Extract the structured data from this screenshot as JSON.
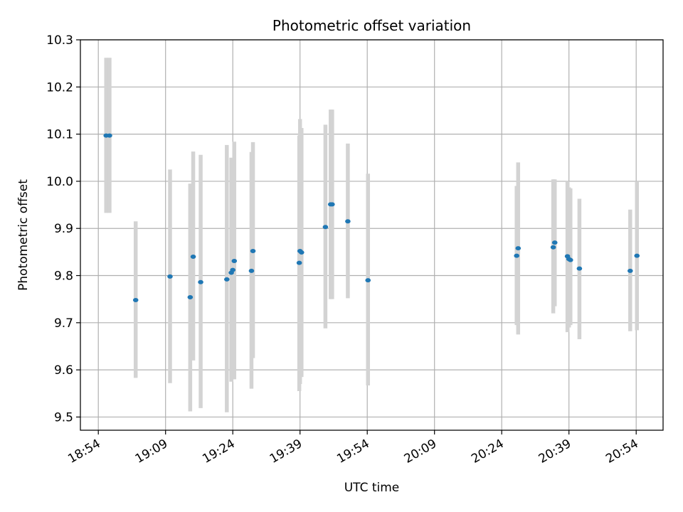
{
  "chart_data": {
    "type": "scatter",
    "title": "Photometric offset variation",
    "xlabel": "UTC time",
    "ylabel": "Photometric offset",
    "grid": true,
    "legend": "none",
    "x_unit": "UTC HH:MM",
    "x_ticks": [
      "18:54",
      "19:09",
      "19:24",
      "19:39",
      "19:54",
      "20:09",
      "20:24",
      "20:39",
      "20:54"
    ],
    "xlim": [
      "18:50",
      "21:00"
    ],
    "y_ticks": [
      "9.5",
      "9.6",
      "9.7",
      "9.8",
      "9.9",
      "10.0",
      "10.1",
      "10.2",
      "10.3"
    ],
    "ylim": [
      9.472,
      10.3
    ],
    "colors": {
      "marker": "#1f77b4",
      "errorbar": "#d3d3d3",
      "grid": "#b0b0b0",
      "axes": "#000000"
    },
    "series": [
      {
        "marker": "point",
        "points": [
          {
            "x": "18:55:45",
            "y": 10.097,
            "ylo": 9.933,
            "yhi": 10.262
          },
          {
            "x": "18:56:30",
            "y": 10.097,
            "ylo": 9.933,
            "yhi": 10.262
          },
          {
            "x": "19:02:20",
            "y": 9.748,
            "ylo": 9.583,
            "yhi": 9.915
          },
          {
            "x": "19:10:00",
            "y": 9.798,
            "ylo": 9.572,
            "yhi": 10.025
          },
          {
            "x": "19:14:30",
            "y": 9.754,
            "ylo": 9.512,
            "yhi": 9.995
          },
          {
            "x": "19:15:10",
            "y": 9.84,
            "ylo": 9.62,
            "yhi": 10.063
          },
          {
            "x": "19:16:50",
            "y": 9.786,
            "ylo": 9.519,
            "yhi": 10.056
          },
          {
            "x": "19:22:40",
            "y": 9.792,
            "ylo": 9.51,
            "yhi": 10.077
          },
          {
            "x": "19:23:40",
            "y": 9.806,
            "ylo": 9.575,
            "yhi": 10.05
          },
          {
            "x": "19:24:00",
            "y": 9.812,
            "ylo": 9.58,
            "yhi": 10.04
          },
          {
            "x": "19:24:20",
            "y": 9.831,
            "ylo": 9.58,
            "yhi": 10.084
          },
          {
            "x": "19:28:10",
            "y": 9.81,
            "ylo": 9.56,
            "yhi": 10.062
          },
          {
            "x": "19:28:30",
            "y": 9.852,
            "ylo": 9.625,
            "yhi": 10.083
          },
          {
            "x": "19:38:50",
            "y": 9.827,
            "ylo": 9.555,
            "yhi": 10.097
          },
          {
            "x": "19:39:00",
            "y": 9.852,
            "ylo": 9.57,
            "yhi": 10.132
          },
          {
            "x": "19:39:20",
            "y": 9.849,
            "ylo": 9.585,
            "yhi": 10.113
          },
          {
            "x": "19:44:40",
            "y": 9.903,
            "ylo": 9.688,
            "yhi": 10.12
          },
          {
            "x": "19:45:50",
            "y": 9.951,
            "ylo": 9.75,
            "yhi": 10.152
          },
          {
            "x": "19:46:10",
            "y": 9.951,
            "ylo": 9.75,
            "yhi": 10.152
          },
          {
            "x": "19:49:40",
            "y": 9.915,
            "ylo": 9.752,
            "yhi": 10.08
          },
          {
            "x": "19:54:10",
            "y": 9.79,
            "ylo": 9.567,
            "yhi": 10.016
          },
          {
            "x": "20:27:20",
            "y": 9.842,
            "ylo": 9.695,
            "yhi": 9.99
          },
          {
            "x": "20:27:40",
            "y": 9.858,
            "ylo": 9.675,
            "yhi": 10.04
          },
          {
            "x": "20:35:30",
            "y": 9.86,
            "ylo": 9.72,
            "yhi": 10.004
          },
          {
            "x": "20:35:50",
            "y": 9.87,
            "ylo": 9.735,
            "yhi": 10.004
          },
          {
            "x": "20:38:40",
            "y": 9.841,
            "ylo": 9.68,
            "yhi": 10.0
          },
          {
            "x": "20:39:00",
            "y": 9.835,
            "ylo": 9.69,
            "yhi": 9.987
          },
          {
            "x": "20:39:20",
            "y": 9.833,
            "ylo": 9.695,
            "yhi": 9.985
          },
          {
            "x": "20:41:20",
            "y": 9.815,
            "ylo": 9.665,
            "yhi": 9.963
          },
          {
            "x": "20:52:40",
            "y": 9.81,
            "ylo": 9.682,
            "yhi": 9.94
          },
          {
            "x": "20:54:10",
            "y": 9.842,
            "ylo": 9.684,
            "yhi": 10.0
          }
        ]
      }
    ]
  }
}
